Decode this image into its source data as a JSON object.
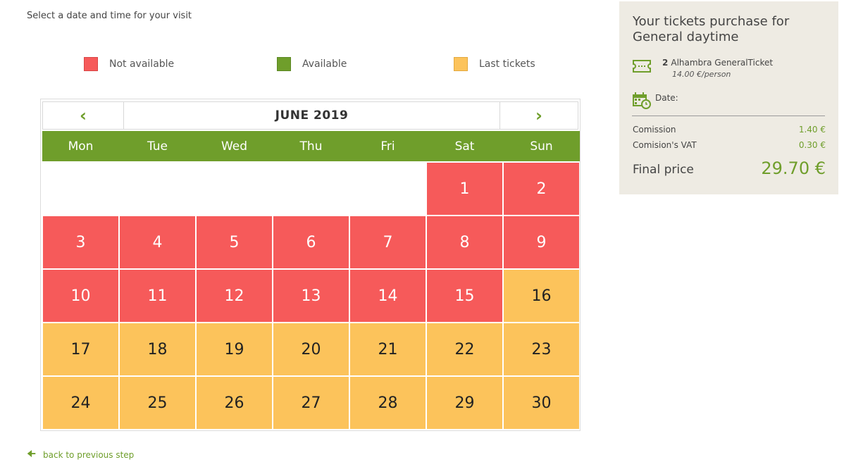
{
  "instruction": "Select a date and time for your visit",
  "legend": {
    "not_available": "Not available",
    "available": "Available",
    "last_tickets": "Last tickets"
  },
  "colors": {
    "not_available": "#f65a5a",
    "available": "#6f9e2b",
    "last_tickets": "#fcc35b",
    "summary_bg": "#eeebe3"
  },
  "calendar": {
    "month": "JUNE 2019",
    "prev_icon": "chevron-left-icon",
    "next_icon": "chevron-right-icon",
    "weekdays": [
      "Mon",
      "Tue",
      "Wed",
      "Thu",
      "Fri",
      "Sat",
      "Sun"
    ],
    "weeks": [
      [
        {
          "day": "",
          "status": "empty"
        },
        {
          "day": "",
          "status": "empty"
        },
        {
          "day": "",
          "status": "empty"
        },
        {
          "day": "",
          "status": "empty"
        },
        {
          "day": "",
          "status": "empty"
        },
        {
          "day": "1",
          "status": "not_available"
        },
        {
          "day": "2",
          "status": "not_available"
        }
      ],
      [
        {
          "day": "3",
          "status": "not_available"
        },
        {
          "day": "4",
          "status": "not_available"
        },
        {
          "day": "5",
          "status": "not_available"
        },
        {
          "day": "6",
          "status": "not_available"
        },
        {
          "day": "7",
          "status": "not_available"
        },
        {
          "day": "8",
          "status": "not_available"
        },
        {
          "day": "9",
          "status": "not_available"
        }
      ],
      [
        {
          "day": "10",
          "status": "not_available"
        },
        {
          "day": "11",
          "status": "not_available"
        },
        {
          "day": "12",
          "status": "not_available"
        },
        {
          "day": "13",
          "status": "not_available"
        },
        {
          "day": "14",
          "status": "not_available"
        },
        {
          "day": "15",
          "status": "not_available"
        },
        {
          "day": "16",
          "status": "last_tickets"
        }
      ],
      [
        {
          "day": "17",
          "status": "last_tickets"
        },
        {
          "day": "18",
          "status": "last_tickets"
        },
        {
          "day": "19",
          "status": "last_tickets"
        },
        {
          "day": "20",
          "status": "last_tickets"
        },
        {
          "day": "21",
          "status": "last_tickets"
        },
        {
          "day": "22",
          "status": "last_tickets"
        },
        {
          "day": "23",
          "status": "last_tickets"
        }
      ],
      [
        {
          "day": "24",
          "status": "last_tickets"
        },
        {
          "day": "25",
          "status": "last_tickets"
        },
        {
          "day": "26",
          "status": "last_tickets"
        },
        {
          "day": "27",
          "status": "last_tickets"
        },
        {
          "day": "28",
          "status": "last_tickets"
        },
        {
          "day": "29",
          "status": "last_tickets"
        },
        {
          "day": "30",
          "status": "last_tickets"
        }
      ]
    ]
  },
  "back_link": "back to previous step",
  "summary": {
    "title": "Your tickets purchase for General daytime",
    "ticket_quantity": "2",
    "ticket_name": "Alhambra GeneralTicket",
    "ticket_price": "14.00 €/person",
    "date_label": "Date:",
    "commission_label": "Comission",
    "commission_value": "1.40 €",
    "vat_label": "Comision's VAT",
    "vat_value": "0.30 €",
    "final_label": "Final price",
    "final_value": "29.70 €"
  }
}
